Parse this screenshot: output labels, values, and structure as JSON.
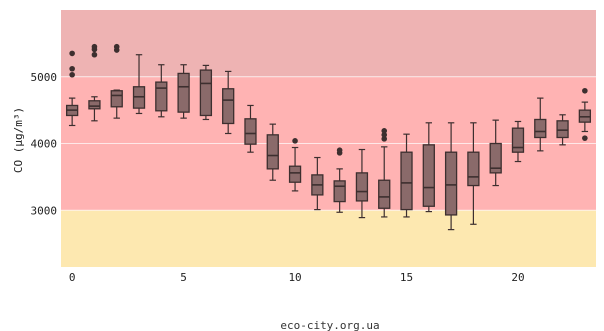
{
  "page": {
    "footer": "eco-city.org.ua"
  },
  "chart_data": {
    "type": "box",
    "title": "",
    "xlabel": "",
    "ylabel": "CO (μg/m³)",
    "xlim": [
      -0.5,
      23.5
    ],
    "ylim": [
      2150,
      6000
    ],
    "x_ticks": [
      0,
      5,
      10,
      15,
      20
    ],
    "y_ticks": [
      3000,
      4000,
      5000
    ],
    "grid": "horizontal",
    "bands": [
      {
        "from": 2150,
        "to": 3000,
        "color": "#fde8b0"
      },
      {
        "from": 3000,
        "to": 5000,
        "color": "#ffb3b3"
      },
      {
        "from": 5000,
        "to": 6000,
        "color": "#eeb3b3"
      }
    ],
    "box_color": "#8a6a6a",
    "box_edge": "#3d2f2f",
    "boxes": [
      {
        "x": 0,
        "min": 4270,
        "q1": 4420,
        "median": 4500,
        "q3": 4570,
        "max": 4680,
        "outliers": [
          5030,
          5120,
          5350
        ]
      },
      {
        "x": 1,
        "min": 4340,
        "q1": 4520,
        "median": 4560,
        "q3": 4640,
        "max": 4700,
        "outliers": [
          5330,
          5410,
          5450
        ]
      },
      {
        "x": 2,
        "min": 4380,
        "q1": 4550,
        "median": 4720,
        "q3": 4790,
        "max": 4800,
        "outliers": [
          5400,
          5450
        ]
      },
      {
        "x": 3,
        "min": 4450,
        "q1": 4530,
        "median": 4700,
        "q3": 4850,
        "max": 5330,
        "outliers": []
      },
      {
        "x": 4,
        "min": 4400,
        "q1": 4490,
        "median": 4830,
        "q3": 4920,
        "max": 5180,
        "outliers": []
      },
      {
        "x": 5,
        "min": 4380,
        "q1": 4470,
        "median": 4850,
        "q3": 5050,
        "max": 5180,
        "outliers": []
      },
      {
        "x": 6,
        "min": 4360,
        "q1": 4420,
        "median": 4900,
        "q3": 5100,
        "max": 5170,
        "outliers": []
      },
      {
        "x": 7,
        "min": 4150,
        "q1": 4300,
        "median": 4650,
        "q3": 4820,
        "max": 5080,
        "outliers": []
      },
      {
        "x": 8,
        "min": 3870,
        "q1": 3990,
        "median": 4150,
        "q3": 4370,
        "max": 4570,
        "outliers": []
      },
      {
        "x": 9,
        "min": 3450,
        "q1": 3620,
        "median": 3820,
        "q3": 4130,
        "max": 4290,
        "outliers": []
      },
      {
        "x": 10,
        "min": 3290,
        "q1": 3420,
        "median": 3560,
        "q3": 3660,
        "max": 3940,
        "outliers": [
          4040
        ]
      },
      {
        "x": 11,
        "min": 3010,
        "q1": 3230,
        "median": 3380,
        "q3": 3530,
        "max": 3790,
        "outliers": []
      },
      {
        "x": 12,
        "min": 2970,
        "q1": 3130,
        "median": 3360,
        "q3": 3440,
        "max": 3620,
        "outliers": [
          3860,
          3900
        ]
      },
      {
        "x": 13,
        "min": 2890,
        "q1": 3140,
        "median": 3280,
        "q3": 3560,
        "max": 3910,
        "outliers": []
      },
      {
        "x": 14,
        "min": 2900,
        "q1": 3030,
        "median": 3200,
        "q3": 3450,
        "max": 3950,
        "outliers": [
          4070,
          4130,
          4190
        ]
      },
      {
        "x": 15,
        "min": 2900,
        "q1": 3010,
        "median": 3410,
        "q3": 3870,
        "max": 4140,
        "outliers": []
      },
      {
        "x": 16,
        "min": 2980,
        "q1": 3060,
        "median": 3340,
        "q3": 3980,
        "max": 4310,
        "outliers": []
      },
      {
        "x": 17,
        "min": 2710,
        "q1": 2930,
        "median": 3380,
        "q3": 3870,
        "max": 4310,
        "outliers": []
      },
      {
        "x": 18,
        "min": 2790,
        "q1": 3370,
        "median": 3500,
        "q3": 3870,
        "max": 4310,
        "outliers": []
      },
      {
        "x": 19,
        "min": 3370,
        "q1": 3560,
        "median": 3630,
        "q3": 4000,
        "max": 4350,
        "outliers": []
      },
      {
        "x": 20,
        "min": 3730,
        "q1": 3870,
        "median": 3940,
        "q3": 4230,
        "max": 4330,
        "outliers": []
      },
      {
        "x": 21,
        "min": 3890,
        "q1": 4090,
        "median": 4180,
        "q3": 4360,
        "max": 4680,
        "outliers": []
      },
      {
        "x": 22,
        "min": 3980,
        "q1": 4090,
        "median": 4200,
        "q3": 4340,
        "max": 4430,
        "outliers": []
      },
      {
        "x": 23,
        "min": 4180,
        "q1": 4320,
        "median": 4400,
        "q3": 4500,
        "max": 4620,
        "outliers": [
          4080,
          4790
        ]
      }
    ]
  }
}
